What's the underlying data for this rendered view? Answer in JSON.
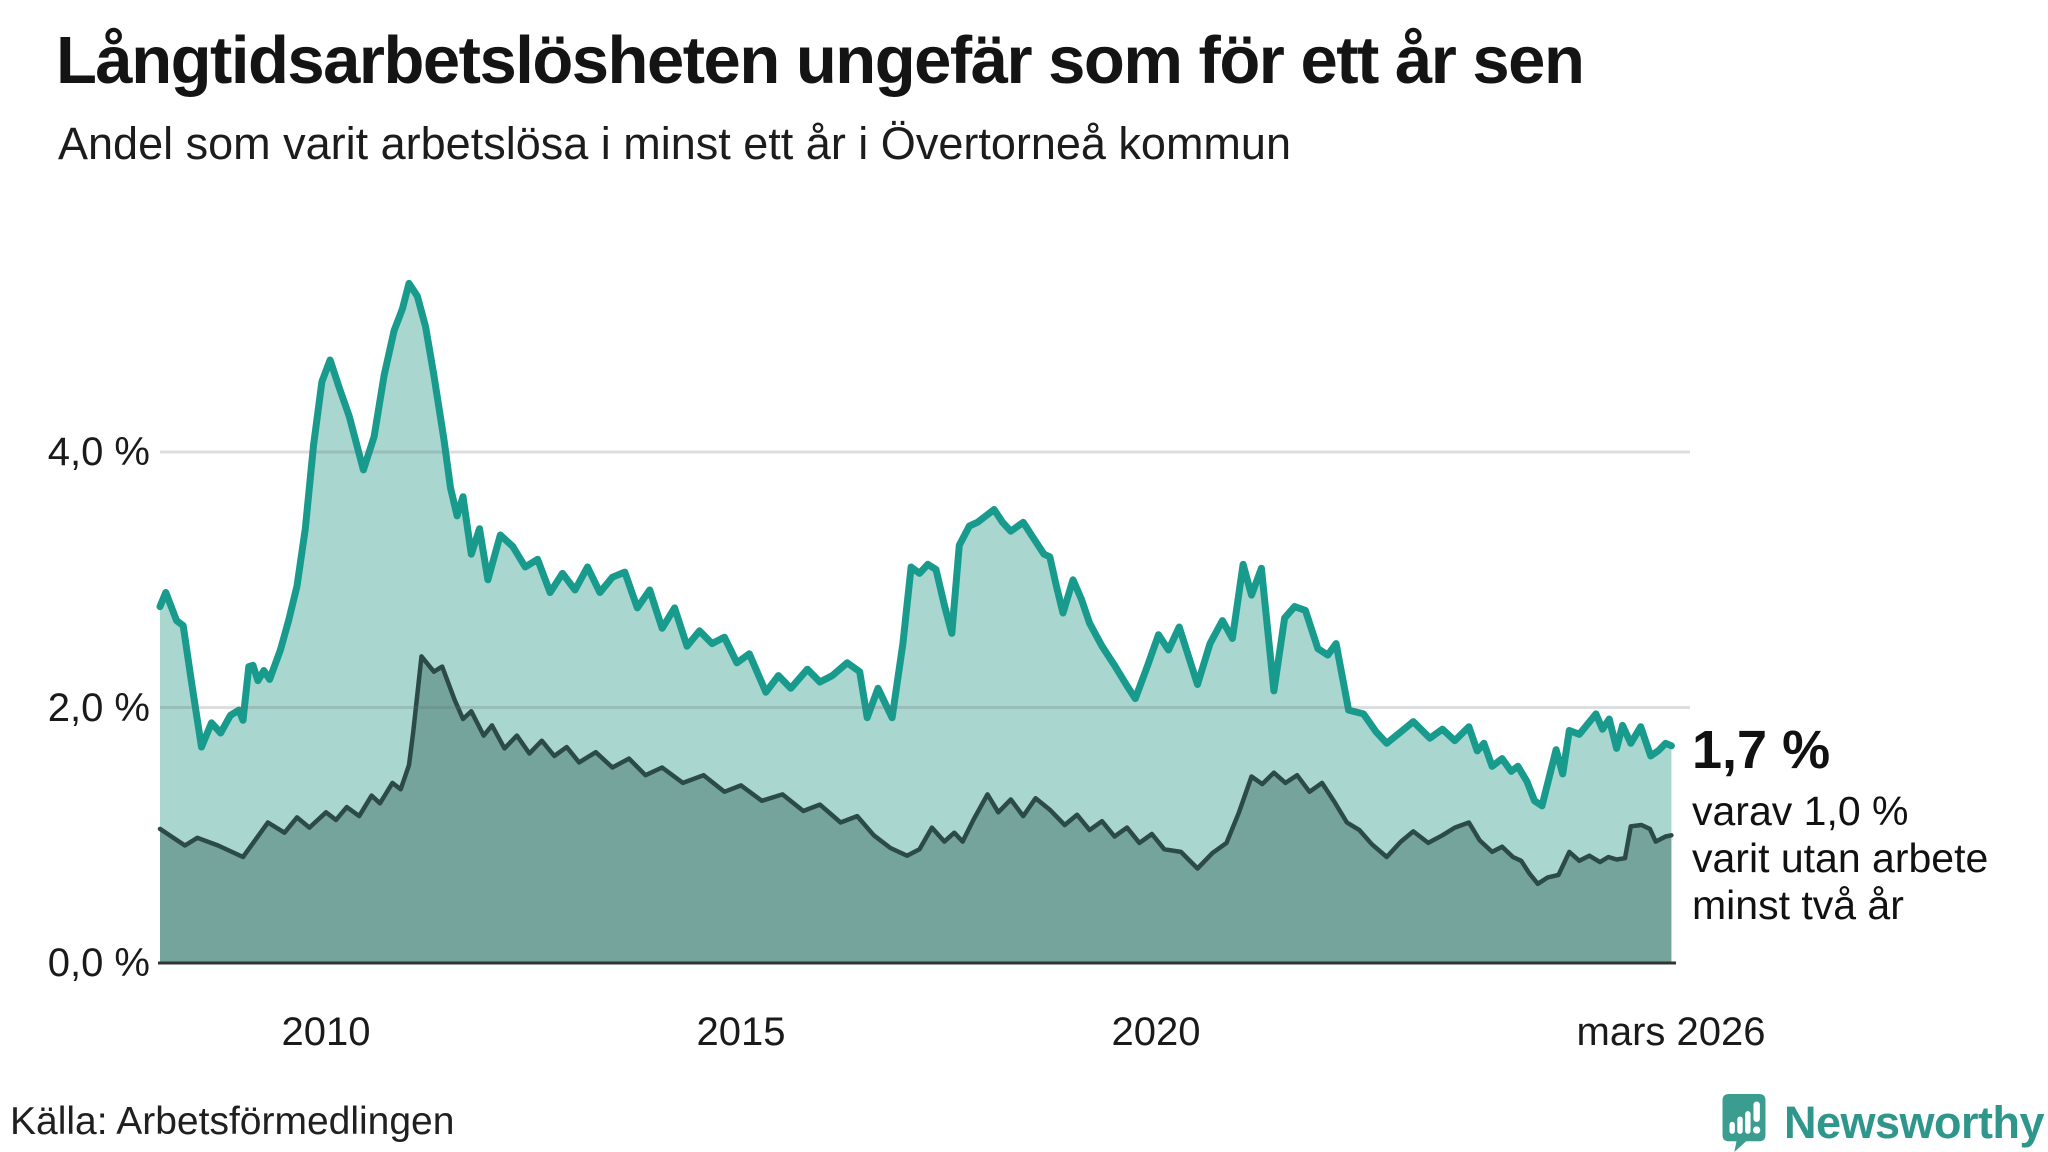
{
  "header": {
    "title": "Långtidsarbetslösheten ungefär som för ett år sen",
    "subtitle": "Andel som varit arbetslösa i minst ett år i Övertorneå kommun"
  },
  "chart_data": {
    "type": "area",
    "title": "Långtidsarbetslösheten ungefär som för ett år sen",
    "subtitle": "Andel som varit arbetslösa i minst ett år i Övertorneå kommun",
    "unit": "%",
    "x_axis": {
      "range": [
        2008.0,
        2026.3
      ],
      "ticks": [
        {
          "label": "2010",
          "t": 2010
        },
        {
          "label": "2015",
          "t": 2015
        },
        {
          "label": "2020",
          "t": 2020
        },
        {
          "label": "mars 2026",
          "t": 2026.17
        }
      ]
    },
    "y_axis": {
      "range": [
        0,
        5.6
      ],
      "gridlines": [
        2,
        4
      ],
      "ticks": [
        {
          "label": "0,0 %",
          "value": 0
        },
        {
          "label": "2,0 %",
          "value": 2
        },
        {
          "label": "4,0 %",
          "value": 4
        }
      ]
    },
    "legend_position": "none",
    "grid": true,
    "series": [
      {
        "name": "Arbetslösa minst ett år",
        "line_color": "#189b8d",
        "fill_color": "#a9d6cf",
        "line_width": 7,
        "points": [
          [
            2008.0,
            2.79
          ],
          [
            2008.07,
            2.9
          ],
          [
            2008.2,
            2.68
          ],
          [
            2008.28,
            2.64
          ],
          [
            2008.38,
            2.2
          ],
          [
            2008.5,
            1.69
          ],
          [
            2008.62,
            1.88
          ],
          [
            2008.73,
            1.8
          ],
          [
            2008.85,
            1.94
          ],
          [
            2008.95,
            1.98
          ],
          [
            2009.0,
            1.9
          ],
          [
            2009.07,
            2.32
          ],
          [
            2009.12,
            2.33
          ],
          [
            2009.18,
            2.21
          ],
          [
            2009.25,
            2.29
          ],
          [
            2009.32,
            2.22
          ],
          [
            2009.45,
            2.45
          ],
          [
            2009.55,
            2.68
          ],
          [
            2009.65,
            2.95
          ],
          [
            2009.75,
            3.4
          ],
          [
            2009.85,
            4.05
          ],
          [
            2009.95,
            4.55
          ],
          [
            2010.05,
            4.72
          ],
          [
            2010.15,
            4.52
          ],
          [
            2010.28,
            4.28
          ],
          [
            2010.45,
            3.86
          ],
          [
            2010.58,
            4.12
          ],
          [
            2010.7,
            4.6
          ],
          [
            2010.82,
            4.95
          ],
          [
            2010.92,
            5.12
          ],
          [
            2011.0,
            5.32
          ],
          [
            2011.1,
            5.22
          ],
          [
            2011.2,
            4.98
          ],
          [
            2011.3,
            4.6
          ],
          [
            2011.42,
            4.1
          ],
          [
            2011.5,
            3.72
          ],
          [
            2011.58,
            3.5
          ],
          [
            2011.65,
            3.65
          ],
          [
            2011.75,
            3.2
          ],
          [
            2011.85,
            3.4
          ],
          [
            2011.95,
            3.0
          ],
          [
            2012.1,
            3.35
          ],
          [
            2012.25,
            3.26
          ],
          [
            2012.4,
            3.1
          ],
          [
            2012.55,
            3.16
          ],
          [
            2012.7,
            2.9
          ],
          [
            2012.85,
            3.05
          ],
          [
            2013.0,
            2.92
          ],
          [
            2013.15,
            3.1
          ],
          [
            2013.3,
            2.9
          ],
          [
            2013.45,
            3.02
          ],
          [
            2013.6,
            3.06
          ],
          [
            2013.75,
            2.78
          ],
          [
            2013.9,
            2.92
          ],
          [
            2014.05,
            2.62
          ],
          [
            2014.2,
            2.78
          ],
          [
            2014.35,
            2.48
          ],
          [
            2014.5,
            2.6
          ],
          [
            2014.65,
            2.5
          ],
          [
            2014.8,
            2.55
          ],
          [
            2014.95,
            2.35
          ],
          [
            2015.1,
            2.42
          ],
          [
            2015.3,
            2.12
          ],
          [
            2015.45,
            2.25
          ],
          [
            2015.6,
            2.15
          ],
          [
            2015.8,
            2.3
          ],
          [
            2015.95,
            2.2
          ],
          [
            2016.1,
            2.25
          ],
          [
            2016.28,
            2.35
          ],
          [
            2016.43,
            2.28
          ],
          [
            2016.52,
            1.92
          ],
          [
            2016.65,
            2.15
          ],
          [
            2016.82,
            1.92
          ],
          [
            2016.95,
            2.5
          ],
          [
            2017.05,
            3.1
          ],
          [
            2017.15,
            3.05
          ],
          [
            2017.25,
            3.12
          ],
          [
            2017.35,
            3.08
          ],
          [
            2017.45,
            2.8
          ],
          [
            2017.54,
            2.58
          ],
          [
            2017.63,
            3.27
          ],
          [
            2017.75,
            3.42
          ],
          [
            2017.85,
            3.45
          ],
          [
            2017.95,
            3.5
          ],
          [
            2018.05,
            3.55
          ],
          [
            2018.15,
            3.45
          ],
          [
            2018.25,
            3.38
          ],
          [
            2018.4,
            3.45
          ],
          [
            2018.55,
            3.3
          ],
          [
            2018.65,
            3.2
          ],
          [
            2018.72,
            3.18
          ],
          [
            2018.8,
            2.95
          ],
          [
            2018.88,
            2.74
          ],
          [
            2019.0,
            3.0
          ],
          [
            2019.1,
            2.85
          ],
          [
            2019.2,
            2.66
          ],
          [
            2019.35,
            2.48
          ],
          [
            2019.5,
            2.33
          ],
          [
            2019.65,
            2.17
          ],
          [
            2019.75,
            2.07
          ],
          [
            2019.9,
            2.33
          ],
          [
            2020.03,
            2.57
          ],
          [
            2020.15,
            2.45
          ],
          [
            2020.28,
            2.63
          ],
          [
            2020.5,
            2.18
          ],
          [
            2020.65,
            2.5
          ],
          [
            2020.8,
            2.68
          ],
          [
            2020.92,
            2.54
          ],
          [
            2021.05,
            3.12
          ],
          [
            2021.15,
            2.88
          ],
          [
            2021.27,
            3.09
          ],
          [
            2021.42,
            2.13
          ],
          [
            2021.55,
            2.7
          ],
          [
            2021.67,
            2.79
          ],
          [
            2021.8,
            2.76
          ],
          [
            2021.95,
            2.46
          ],
          [
            2022.07,
            2.41
          ],
          [
            2022.17,
            2.5
          ],
          [
            2022.32,
            1.98
          ],
          [
            2022.5,
            1.95
          ],
          [
            2022.65,
            1.81
          ],
          [
            2022.78,
            1.72
          ],
          [
            2022.95,
            1.81
          ],
          [
            2023.1,
            1.89
          ],
          [
            2023.3,
            1.76
          ],
          [
            2023.45,
            1.83
          ],
          [
            2023.6,
            1.74
          ],
          [
            2023.77,
            1.85
          ],
          [
            2023.87,
            1.66
          ],
          [
            2023.95,
            1.72
          ],
          [
            2024.05,
            1.54
          ],
          [
            2024.17,
            1.6
          ],
          [
            2024.28,
            1.5
          ],
          [
            2024.36,
            1.54
          ],
          [
            2024.47,
            1.42
          ],
          [
            2024.56,
            1.27
          ],
          [
            2024.65,
            1.23
          ],
          [
            2024.82,
            1.67
          ],
          [
            2024.9,
            1.48
          ],
          [
            2024.98,
            1.82
          ],
          [
            2025.1,
            1.79
          ],
          [
            2025.3,
            1.95
          ],
          [
            2025.38,
            1.83
          ],
          [
            2025.46,
            1.91
          ],
          [
            2025.55,
            1.68
          ],
          [
            2025.62,
            1.86
          ],
          [
            2025.72,
            1.72
          ],
          [
            2025.84,
            1.85
          ],
          [
            2025.96,
            1.62
          ],
          [
            2026.05,
            1.66
          ],
          [
            2026.14,
            1.72
          ],
          [
            2026.21,
            1.7
          ]
        ]
      },
      {
        "name": "Arbetslösa minst två år",
        "line_color": "#2d4b46",
        "fill_color": "#74a49b",
        "line_width": 4.5,
        "points": [
          [
            2008.0,
            1.05
          ],
          [
            2008.3,
            0.92
          ],
          [
            2008.45,
            0.98
          ],
          [
            2008.7,
            0.92
          ],
          [
            2009.0,
            0.83
          ],
          [
            2009.3,
            1.1
          ],
          [
            2009.5,
            1.02
          ],
          [
            2009.65,
            1.14
          ],
          [
            2009.8,
            1.06
          ],
          [
            2010.0,
            1.18
          ],
          [
            2010.12,
            1.12
          ],
          [
            2010.25,
            1.22
          ],
          [
            2010.4,
            1.15
          ],
          [
            2010.55,
            1.31
          ],
          [
            2010.65,
            1.25
          ],
          [
            2010.8,
            1.41
          ],
          [
            2010.9,
            1.36
          ],
          [
            2011.0,
            1.55
          ],
          [
            2011.05,
            1.8
          ],
          [
            2011.15,
            2.4
          ],
          [
            2011.3,
            2.28
          ],
          [
            2011.4,
            2.32
          ],
          [
            2011.55,
            2.06
          ],
          [
            2011.65,
            1.91
          ],
          [
            2011.75,
            1.97
          ],
          [
            2011.9,
            1.78
          ],
          [
            2012.0,
            1.86
          ],
          [
            2012.15,
            1.68
          ],
          [
            2012.3,
            1.78
          ],
          [
            2012.45,
            1.64
          ],
          [
            2012.6,
            1.74
          ],
          [
            2012.75,
            1.62
          ],
          [
            2012.9,
            1.69
          ],
          [
            2013.05,
            1.57
          ],
          [
            2013.25,
            1.65
          ],
          [
            2013.45,
            1.53
          ],
          [
            2013.65,
            1.6
          ],
          [
            2013.85,
            1.47
          ],
          [
            2014.05,
            1.53
          ],
          [
            2014.3,
            1.41
          ],
          [
            2014.55,
            1.47
          ],
          [
            2014.8,
            1.34
          ],
          [
            2015.0,
            1.39
          ],
          [
            2015.25,
            1.27
          ],
          [
            2015.5,
            1.32
          ],
          [
            2015.75,
            1.19
          ],
          [
            2015.95,
            1.24
          ],
          [
            2016.2,
            1.1
          ],
          [
            2016.4,
            1.15
          ],
          [
            2016.6,
            1.0
          ],
          [
            2016.8,
            0.9
          ],
          [
            2017.0,
            0.84
          ],
          [
            2017.15,
            0.89
          ],
          [
            2017.3,
            1.06
          ],
          [
            2017.45,
            0.95
          ],
          [
            2017.57,
            1.02
          ],
          [
            2017.67,
            0.95
          ],
          [
            2017.8,
            1.12
          ],
          [
            2017.97,
            1.32
          ],
          [
            2018.1,
            1.18
          ],
          [
            2018.25,
            1.28
          ],
          [
            2018.4,
            1.15
          ],
          [
            2018.55,
            1.29
          ],
          [
            2018.72,
            1.2
          ],
          [
            2018.9,
            1.08
          ],
          [
            2019.05,
            1.16
          ],
          [
            2019.2,
            1.04
          ],
          [
            2019.35,
            1.11
          ],
          [
            2019.5,
            0.99
          ],
          [
            2019.65,
            1.06
          ],
          [
            2019.8,
            0.94
          ],
          [
            2019.95,
            1.01
          ],
          [
            2020.1,
            0.89
          ],
          [
            2020.3,
            0.87
          ],
          [
            2020.5,
            0.74
          ],
          [
            2020.68,
            0.86
          ],
          [
            2020.85,
            0.94
          ],
          [
            2021.0,
            1.18
          ],
          [
            2021.15,
            1.46
          ],
          [
            2021.28,
            1.4
          ],
          [
            2021.42,
            1.49
          ],
          [
            2021.56,
            1.41
          ],
          [
            2021.7,
            1.47
          ],
          [
            2021.85,
            1.34
          ],
          [
            2022.0,
            1.41
          ],
          [
            2022.15,
            1.26
          ],
          [
            2022.3,
            1.1
          ],
          [
            2022.45,
            1.04
          ],
          [
            2022.6,
            0.93
          ],
          [
            2022.78,
            0.83
          ],
          [
            2022.95,
            0.95
          ],
          [
            2023.1,
            1.03
          ],
          [
            2023.28,
            0.94
          ],
          [
            2023.45,
            1.0
          ],
          [
            2023.6,
            1.06
          ],
          [
            2023.77,
            1.1
          ],
          [
            2023.9,
            0.96
          ],
          [
            2024.05,
            0.87
          ],
          [
            2024.17,
            0.91
          ],
          [
            2024.3,
            0.83
          ],
          [
            2024.4,
            0.8
          ],
          [
            2024.5,
            0.7
          ],
          [
            2024.6,
            0.62
          ],
          [
            2024.72,
            0.67
          ],
          [
            2024.85,
            0.69
          ],
          [
            2024.98,
            0.87
          ],
          [
            2025.1,
            0.8
          ],
          [
            2025.22,
            0.84
          ],
          [
            2025.35,
            0.79
          ],
          [
            2025.45,
            0.83
          ],
          [
            2025.55,
            0.81
          ],
          [
            2025.65,
            0.82
          ],
          [
            2025.72,
            1.07
          ],
          [
            2025.85,
            1.08
          ],
          [
            2025.95,
            1.05
          ],
          [
            2026.02,
            0.95
          ],
          [
            2026.14,
            0.99
          ],
          [
            2026.21,
            1.0
          ]
        ]
      }
    ],
    "annotation": {
      "value": "1,7 %",
      "lines": [
        "varav 1,0 %",
        "varit utan arbete",
        "minst två år"
      ]
    }
  },
  "footer": {
    "source": "Källa: Arbetsförmedlingen",
    "brand": "Newsworthy"
  },
  "colors": {
    "line_1yr": "#189b8d",
    "fill_1yr": "#a9d6cf",
    "line_2yr": "#2d4b46",
    "fill_2yr": "#74a49b",
    "gridline": "#5f6b70",
    "baseline": "#333333",
    "brand_teal": "#2f968b",
    "text": "#161616"
  }
}
